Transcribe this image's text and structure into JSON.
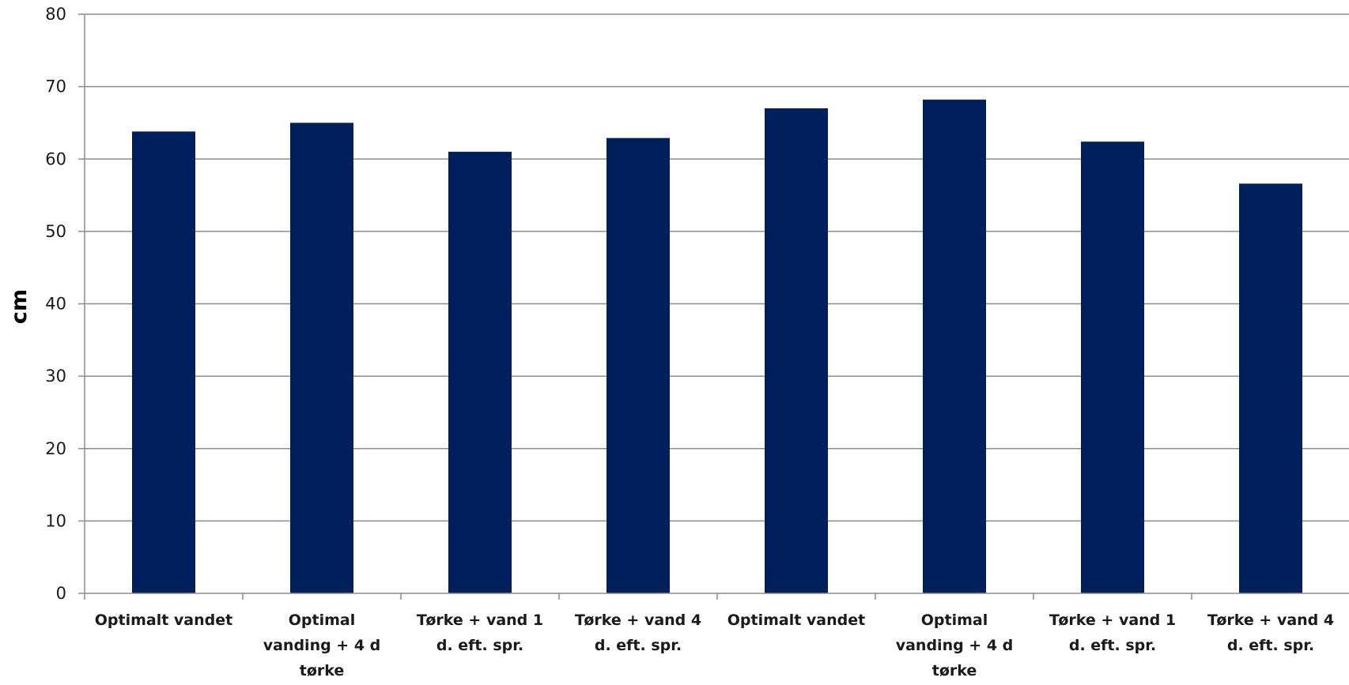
{
  "chart_data": {
    "type": "bar",
    "title": "",
    "xlabel": "",
    "ylabel": "cm",
    "ylim": [
      0,
      80
    ],
    "yticks": [
      0,
      10,
      20,
      30,
      40,
      50,
      60,
      70,
      80
    ],
    "grid": true,
    "legend": "none",
    "categories": [
      [
        "Optimalt vandet"
      ],
      [
        "Optimal",
        "vanding + 4 d",
        "tørke"
      ],
      [
        "Tørke + vand 1",
        "d. eft. spr."
      ],
      [
        "Tørke + vand 4",
        "d. eft. spr."
      ],
      [
        "Optimalt vandet"
      ],
      [
        "Optimal",
        "vanding + 4 d",
        "tørke"
      ],
      [
        "Tørke + vand 1",
        "d. eft. spr."
      ],
      [
        "Tørke + vand 4",
        "d. eft. spr."
      ]
    ],
    "series": [
      {
        "values": [
          63.8,
          65.0,
          61.0,
          62.9,
          67.0,
          68.2,
          62.4,
          56.6
        ],
        "color": "#00205b"
      }
    ]
  },
  "colors": {
    "bar": "#00205b",
    "grid": "#8c8c8c",
    "axis": "#8c8c8c"
  }
}
